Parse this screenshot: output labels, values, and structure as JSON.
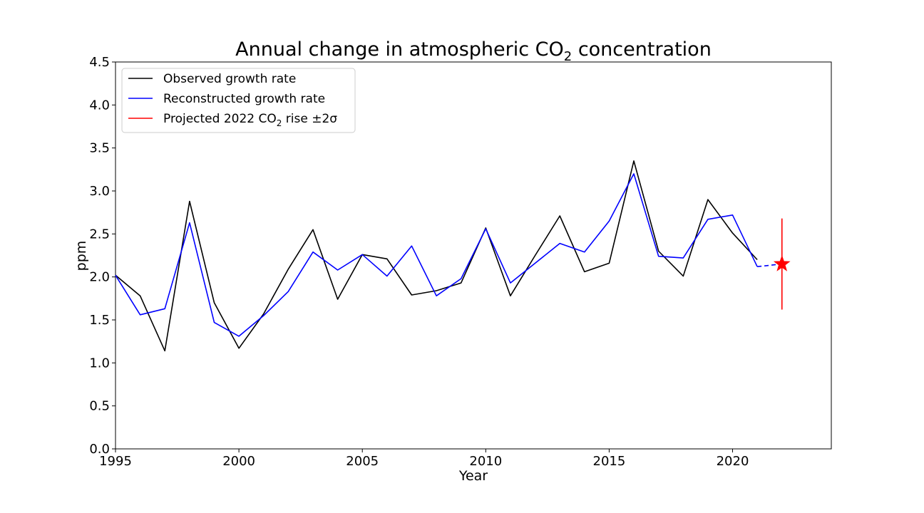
{
  "chart_data": {
    "type": "line",
    "title": "Annual change in atmospheric CO",
    "title_subscript": "2",
    "title_suffix": " concentration",
    "xlabel": "Year",
    "ylabel": "ppm",
    "xlim": [
      1995,
      2024
    ],
    "ylim": [
      0,
      4.5
    ],
    "x_ticks": [
      1995,
      2000,
      2005,
      2010,
      2015,
      2020
    ],
    "y_ticks": [
      0.0,
      0.5,
      1.0,
      1.5,
      2.0,
      2.5,
      3.0,
      3.5,
      4.0,
      4.5
    ],
    "y_tick_labels": [
      "0.0",
      "0.5",
      "1.0",
      "1.5",
      "2.0",
      "2.5",
      "3.0",
      "3.5",
      "4.0",
      "4.5"
    ],
    "grid": false,
    "legend_position": "top-left",
    "series": [
      {
        "name": "Observed growth rate",
        "color": "#000000",
        "x": [
          1995,
          1996,
          1997,
          1998,
          1999,
          2000,
          2001,
          2002,
          2003,
          2004,
          2005,
          2006,
          2007,
          2008,
          2009,
          2010,
          2011,
          2012,
          2013,
          2014,
          2015,
          2016,
          2017,
          2018,
          2019,
          2020,
          2021
        ],
        "values": [
          2.02,
          1.78,
          1.14,
          2.88,
          1.7,
          1.17,
          1.57,
          2.09,
          2.55,
          1.74,
          2.26,
          2.21,
          1.79,
          1.84,
          1.93,
          2.57,
          1.78,
          2.25,
          2.71,
          2.06,
          2.16,
          3.35,
          2.3,
          2.01,
          2.9,
          2.51,
          2.2
        ]
      },
      {
        "name": "Reconstructed growth rate",
        "color": "#0000ff",
        "x": [
          1995,
          1996,
          1997,
          1998,
          1999,
          2000,
          2001,
          2002,
          2003,
          2004,
          2005,
          2006,
          2007,
          2008,
          2009,
          2010,
          2011,
          2012,
          2013,
          2014,
          2015,
          2016,
          2017,
          2018,
          2019,
          2020,
          2021
        ],
        "values": [
          2.02,
          1.56,
          1.63,
          2.63,
          1.47,
          1.31,
          1.55,
          1.83,
          2.29,
          2.08,
          2.26,
          2.01,
          2.36,
          1.78,
          1.98,
          2.56,
          1.93,
          2.16,
          2.39,
          2.29,
          2.65,
          3.2,
          2.24,
          2.22,
          2.67,
          2.72,
          2.12
        ]
      }
    ],
    "projection_link": {
      "x": [
        2021,
        2022
      ],
      "values": [
        2.12,
        2.15
      ],
      "color": "#0000ff",
      "style": "dashed"
    },
    "projection": {
      "name_prefix": "Projected 2022 CO",
      "name_subscript": "2",
      "name_suffix": " rise ±2σ",
      "x": 2022,
      "value": 2.15,
      "lower": 1.62,
      "upper": 2.68,
      "color": "#ff0000",
      "marker": "star"
    }
  }
}
